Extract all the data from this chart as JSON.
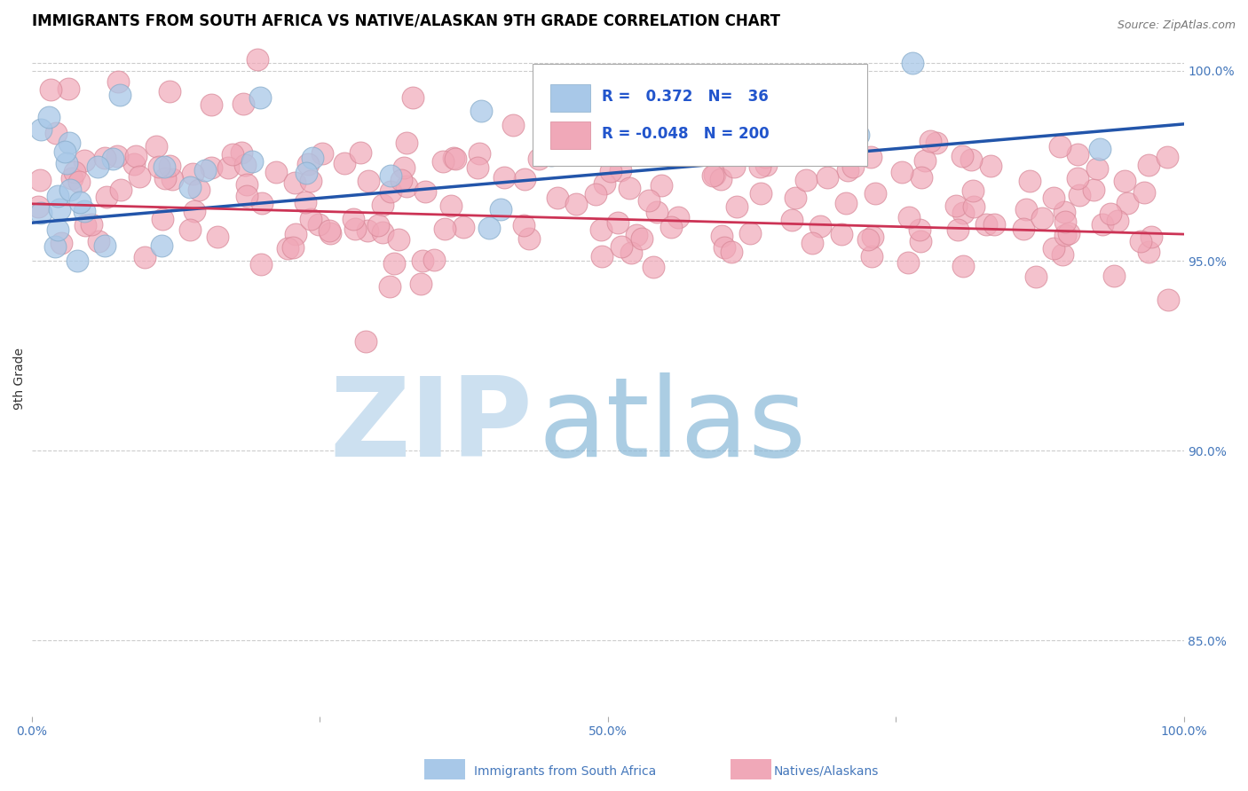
{
  "title": "IMMIGRANTS FROM SOUTH AFRICA VS NATIVE/ALASKAN 9TH GRADE CORRELATION CHART",
  "source_text": "Source: ZipAtlas.com",
  "ylabel": "9th Grade",
  "x_min": 0.0,
  "x_max": 1.0,
  "y_min": 0.83,
  "y_max": 1.008,
  "right_yticks": [
    0.85,
    0.9,
    0.95,
    1.0
  ],
  "right_yticklabels": [
    "85.0%",
    "90.0%",
    "95.0%",
    "100.0%"
  ],
  "r_blue": 0.372,
  "n_blue": 36,
  "r_pink": -0.048,
  "n_pink": 200,
  "blue_color": "#a8c8e8",
  "pink_color": "#f0a8b8",
  "blue_edge_color": "#8aaecc",
  "pink_edge_color": "#d88898",
  "blue_line_color": "#2255aa",
  "pink_line_color": "#cc3355",
  "legend_blue_label": "Immigrants from South Africa",
  "legend_pink_label": "Natives/Alaskans",
  "watermark_zip_color": "#cce0f0",
  "watermark_atlas_color": "#88b8d8",
  "background_color": "#ffffff",
  "grid_color": "#cccccc",
  "title_fontsize": 12,
  "axis_fontsize": 10,
  "legend_fontsize": 12,
  "xtick_labels": [
    "0.0%",
    "",
    "50.0%",
    "",
    "100.0%"
  ],
  "xtick_positions": [
    0.0,
    0.25,
    0.5,
    0.75,
    1.0
  ]
}
